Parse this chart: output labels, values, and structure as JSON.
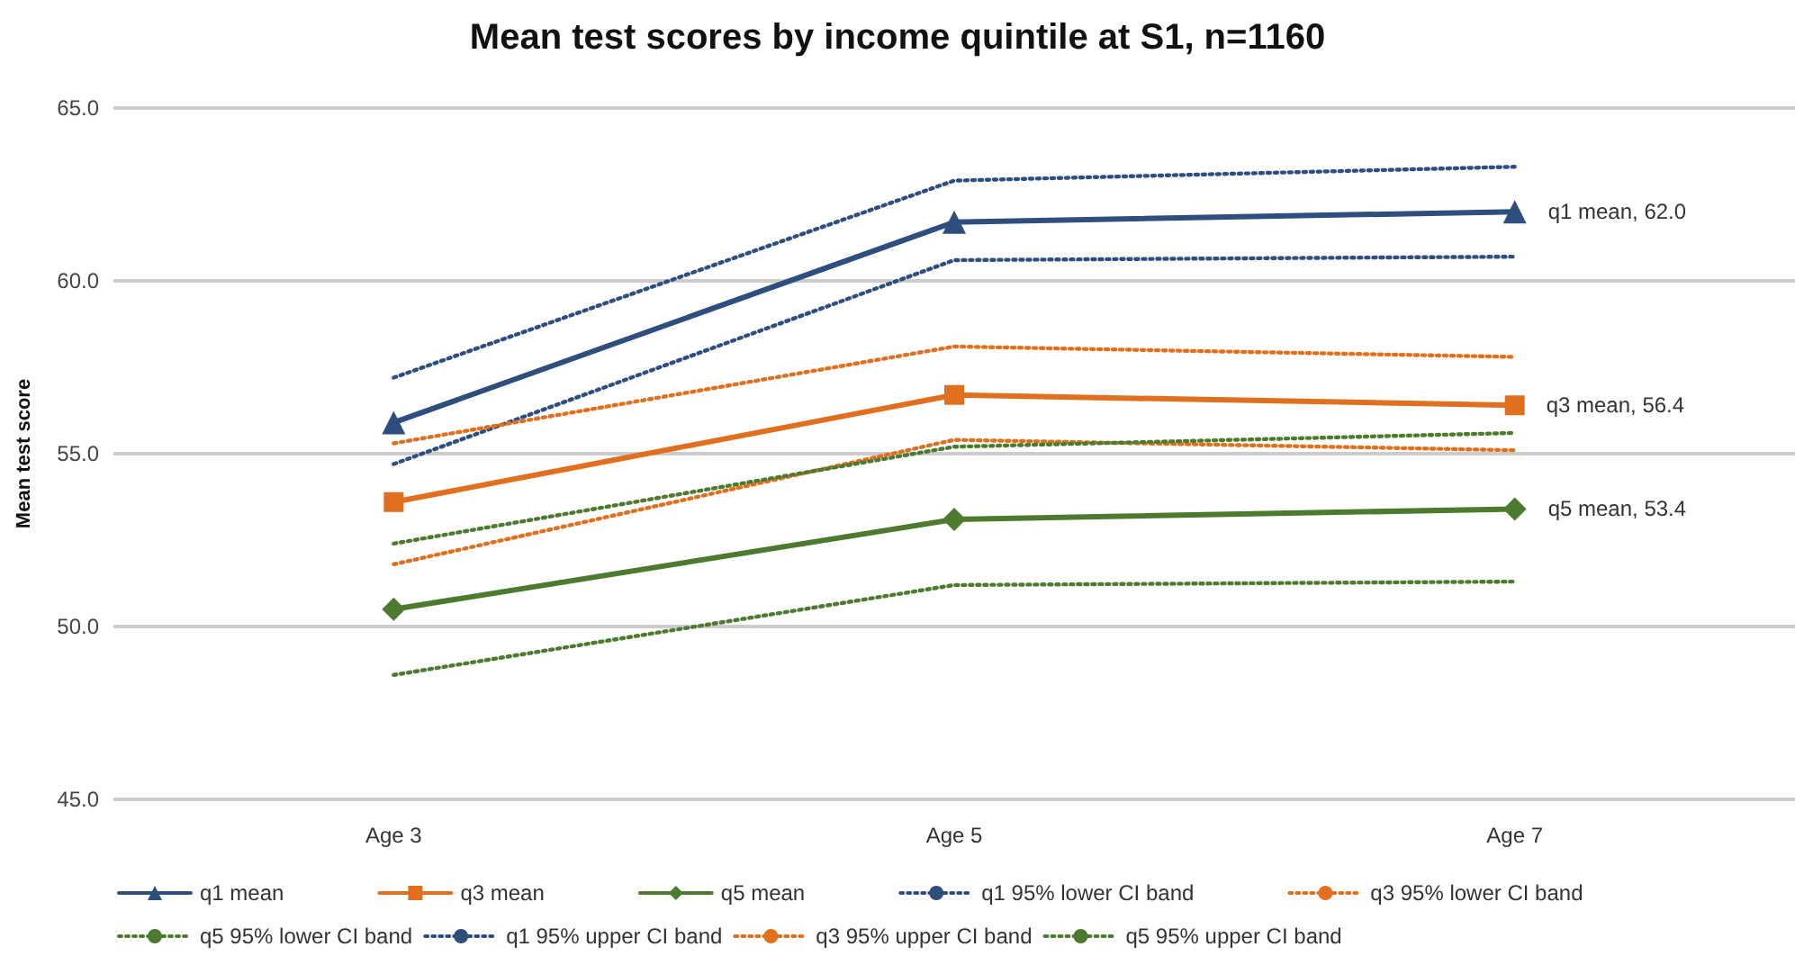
{
  "chart_data": {
    "type": "line",
    "title": "Mean test scores by income quintile at S1, n=1160",
    "ylabel": "Mean test score",
    "categories": [
      "Age 3",
      "Age 5",
      "Age 7"
    ],
    "ylim": [
      45,
      65
    ],
    "yticks": [
      {
        "value": 45,
        "label": "45.0"
      },
      {
        "value": 50,
        "label": "50.0"
      },
      {
        "value": 55,
        "label": "55.0"
      },
      {
        "value": 60,
        "label": "60.0"
      },
      {
        "value": 65,
        "label": "65.0"
      }
    ],
    "grid": "y",
    "legend": "bottom",
    "series": [
      {
        "name": "q1 mean",
        "color": "#2e4f7e",
        "values": [
          55.9,
          61.7,
          62.0
        ],
        "marker": "triangle",
        "line_style": "solid",
        "value_labels": [
          null,
          null,
          "q1 mean, 62.0"
        ]
      },
      {
        "name": "q3 mean",
        "color": "#e07020",
        "values": [
          53.6,
          56.7,
          56.4
        ],
        "marker": "square",
        "line_style": "solid",
        "value_labels": [
          null,
          null,
          "q3 mean, 56.4"
        ]
      },
      {
        "name": "q5 mean",
        "color": "#4e7a30",
        "values": [
          50.5,
          53.1,
          53.4
        ],
        "marker": "diamond",
        "line_style": "solid",
        "value_labels": [
          null,
          null,
          "q5 mean, 53.4"
        ]
      },
      {
        "name": "q1 95% lower CI band",
        "color": "#2e4f7e",
        "values": [
          54.7,
          60.6,
          60.7
        ],
        "marker": "none",
        "line_style": "dotted"
      },
      {
        "name": "q3 95% lower CI band",
        "color": "#e07020",
        "values": [
          51.8,
          55.4,
          55.1
        ],
        "marker": "none",
        "line_style": "dotted"
      },
      {
        "name": "q5 95% lower CI band",
        "color": "#4e7a30",
        "values": [
          48.6,
          51.2,
          51.3
        ],
        "marker": "none",
        "line_style": "dotted"
      },
      {
        "name": "q1 95% upper CI band",
        "color": "#2e4f7e",
        "values": [
          57.2,
          62.9,
          63.3
        ],
        "marker": "none",
        "line_style": "dotted"
      },
      {
        "name": "q3 95% upper CI band",
        "color": "#e07020",
        "values": [
          55.3,
          58.1,
          57.8
        ],
        "marker": "none",
        "line_style": "dotted"
      },
      {
        "name": "q5 95% upper CI band",
        "color": "#4e7a30",
        "values": [
          52.4,
          55.2,
          55.6
        ],
        "marker": "none",
        "line_style": "dotted"
      }
    ]
  }
}
